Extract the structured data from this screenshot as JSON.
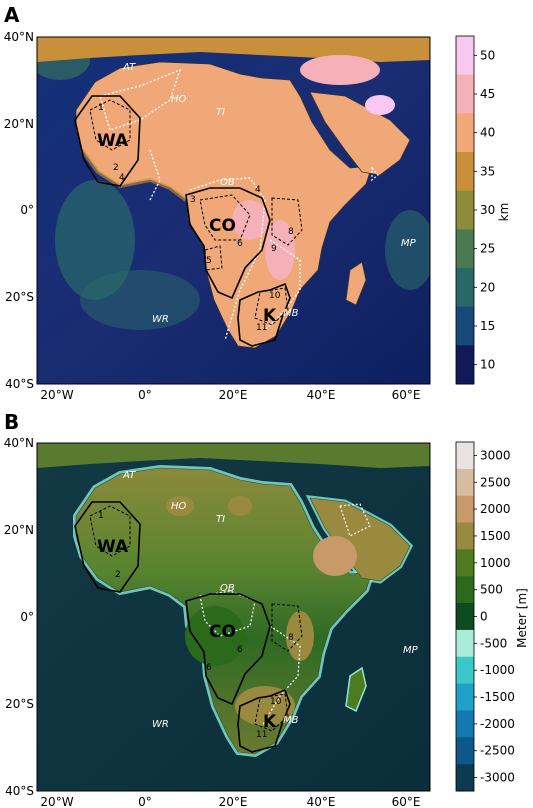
{
  "panels": [
    {
      "letter": "A",
      "colorbar": {
        "label": "km",
        "ticks": [
          "50",
          "45",
          "40",
          "35",
          "30",
          "25",
          "20",
          "15",
          "10"
        ],
        "colors": [
          "#f8c8f0",
          "#f5b0b8",
          "#f0a878",
          "#c8903a",
          "#8c8c3a",
          "#4a7a52",
          "#2a6868",
          "#18487a",
          "#101a5a"
        ]
      }
    },
    {
      "letter": "B",
      "colorbar": {
        "label": "Meter [m]",
        "ticks": [
          "3000",
          "2500",
          "2000",
          "1500",
          "1000",
          "500",
          "0",
          "-500",
          "-1000",
          "-1500",
          "-2000",
          "-2500",
          "-3000"
        ],
        "colors": [
          "#e8e4e4",
          "#d8bca0",
          "#c89a6a",
          "#9a8a40",
          "#4e7a20",
          "#2a6a1a",
          "#0c4a20",
          "#a8ecd8",
          "#3ac8c8",
          "#1ea0c8",
          "#1478b0",
          "#0c5888",
          "#0c3a50"
        ]
      }
    }
  ],
  "axes": {
    "lon_ticks": [
      "20°W",
      "0°",
      "20°E",
      "40°E",
      "60°E"
    ],
    "lat_ticks": [
      "40°N",
      "20°N",
      "0°",
      "20°S",
      "40°S"
    ]
  },
  "regions": {
    "wa": "WA",
    "co": "CO",
    "k": "K"
  },
  "features": {
    "at": "AT",
    "ho": "HO",
    "ti": "TI",
    "ob": "OB",
    "wr": "WR",
    "mb": "MB",
    "mp": "MP"
  },
  "numbers": {
    "n1": "1",
    "n2": "2",
    "n3": "3",
    "n4": "4",
    "n5": "5",
    "n6": "6",
    "n8": "8",
    "n9": "9",
    "n10": "10",
    "n11": "11"
  }
}
